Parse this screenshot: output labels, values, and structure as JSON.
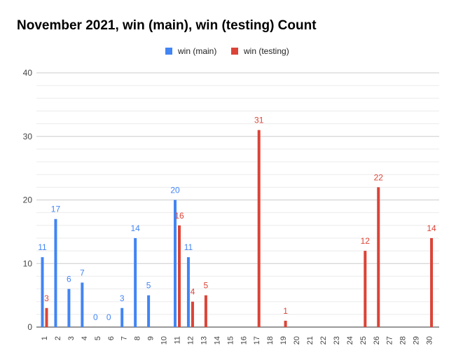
{
  "chart_data": {
    "type": "bar",
    "title": "November 2021, win (main), win (testing) Count",
    "categories": [
      "1",
      "2",
      "3",
      "4",
      "5",
      "6",
      "7",
      "8",
      "9",
      "10",
      "11",
      "12",
      "13",
      "14",
      "15",
      "16",
      "17",
      "18",
      "19",
      "20",
      "21",
      "22",
      "23",
      "24",
      "25",
      "26",
      "27",
      "28",
      "29",
      "30"
    ],
    "series": [
      {
        "name": "win (main)",
        "color": "#4285f4",
        "values": [
          11,
          17,
          6,
          7,
          0,
          0,
          3,
          14,
          5,
          null,
          20,
          11,
          null,
          null,
          null,
          null,
          null,
          null,
          null,
          null,
          null,
          null,
          null,
          null,
          null,
          null,
          null,
          null,
          null,
          null
        ]
      },
      {
        "name": "win (testing)",
        "color": "#db4437",
        "values": [
          3,
          null,
          null,
          null,
          null,
          null,
          null,
          null,
          null,
          null,
          16,
          4,
          5,
          null,
          null,
          null,
          31,
          null,
          1,
          null,
          null,
          null,
          null,
          null,
          12,
          22,
          null,
          null,
          null,
          14
        ]
      }
    ],
    "ylim": [
      0,
      40
    ],
    "yticks": [
      0,
      10,
      20,
      30,
      40
    ],
    "grid": true,
    "legend": "top-center"
  }
}
